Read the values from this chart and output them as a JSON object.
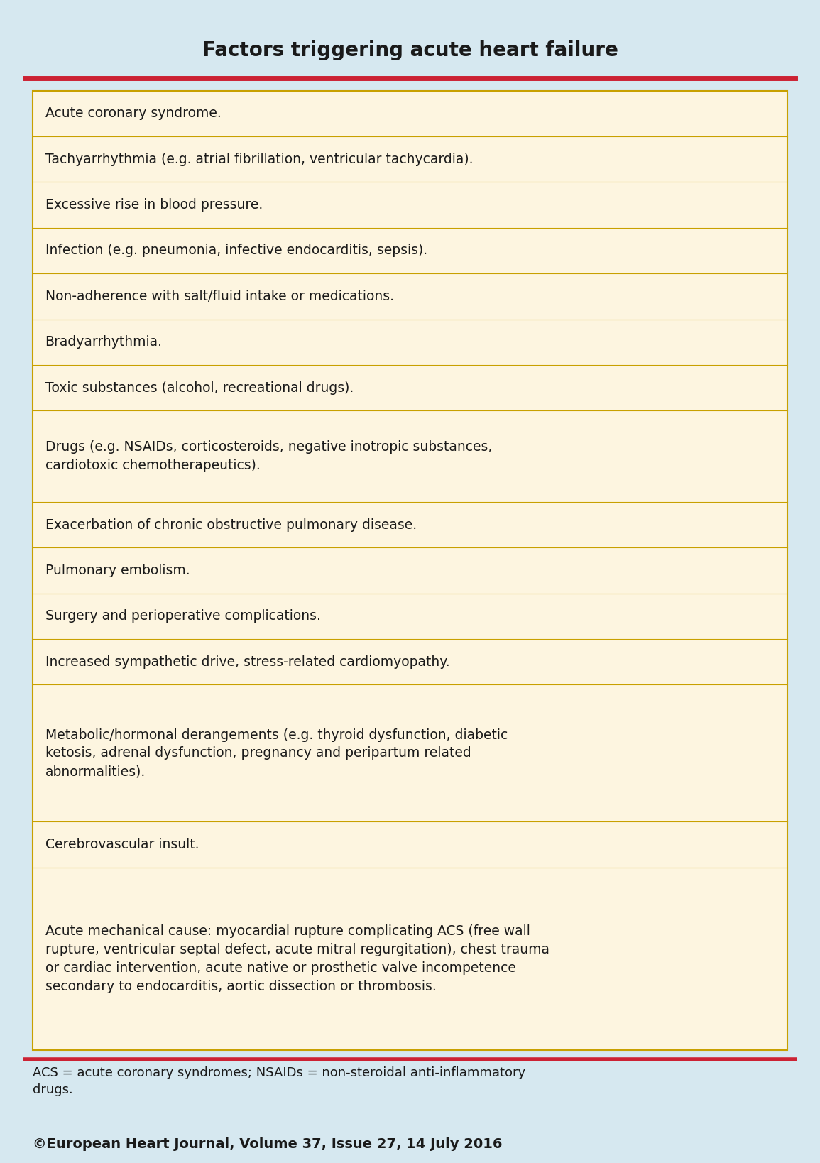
{
  "title": "Factors triggering acute heart failure",
  "title_fontsize": 20,
  "title_color": "#1a1a1a",
  "background_color": "#d6e8f0",
  "table_bg_color": "#fdf5e0",
  "border_color": "#c8a000",
  "header_line_color": "#cc2233",
  "text_color": "#1a1a1a",
  "footnote_color": "#1a1a1a",
  "copyright_color": "#1a1a1a",
  "rows": [
    "Acute coronary syndrome.",
    "Tachyarrhythmia (e.g. atrial fibrillation, ventricular tachycardia).",
    "Excessive rise in blood pressure.",
    "Infection (e.g. pneumonia, infective endocarditis, sepsis).",
    "Non-adherence with salt/fluid intake or medications.",
    "Bradyarrhythmia.",
    "Toxic substances (alcohol, recreational drugs).",
    "Drugs (e.g. NSAIDs, corticosteroids, negative inotropic substances,\ncardiotoxic chemotherapeutics).",
    "Exacerbation of chronic obstructive pulmonary disease.",
    "Pulmonary embolism.",
    "Surgery and perioperative complications.",
    "Increased sympathetic drive, stress-related cardiomyopathy.",
    "Metabolic/hormonal derangements (e.g. thyroid dysfunction, diabetic\nketosis, adrenal dysfunction, pregnancy and peripartum related\nabnormalities).",
    "Cerebrovascular insult.",
    "Acute mechanical cause: myocardial rupture complicating ACS (free wall\nrupture, ventricular septal defect, acute mitral regurgitation), chest trauma\nor cardiac intervention, acute native or prosthetic valve incompetence\nsecondary to endocarditis, aortic dissection or thrombosis."
  ],
  "footnote": "ACS = acute coronary syndromes; NSAIDs = non-steroidal anti-inflammatory\ndrugs.",
  "copyright": "©European Heart Journal, Volume 37, Issue 27, 14 July 2016",
  "row_heights": [
    1,
    1,
    1,
    1,
    1,
    1,
    1,
    2,
    1,
    1,
    1,
    1,
    3,
    1,
    4
  ],
  "text_fontsize": 13.5,
  "footnote_fontsize": 13,
  "copyright_fontsize": 14
}
